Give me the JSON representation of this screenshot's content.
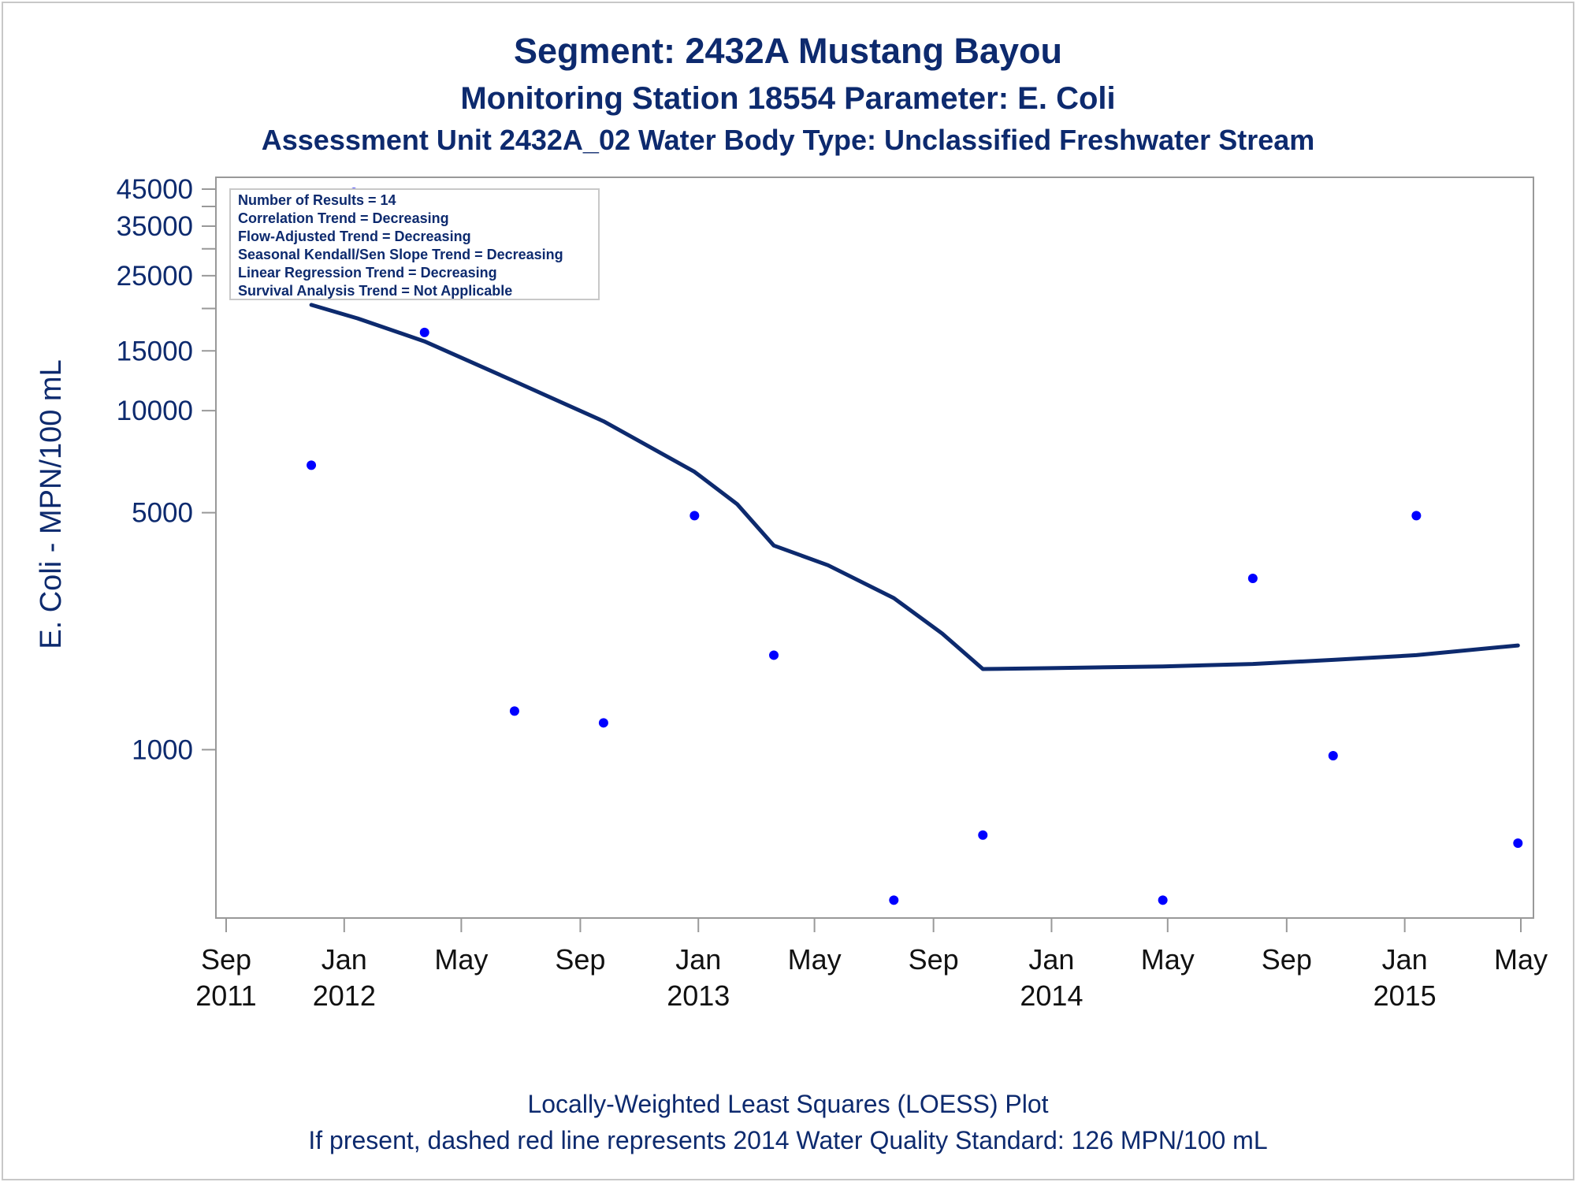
{
  "chart_data": {
    "type": "scatter",
    "title": "Segment: 2432A  Mustang Bayou",
    "subtitle": "Monitoring Station 18554 Parameter: E. Coli",
    "subtitle2": "Assessment Unit 2432A_02   Water Body Type: Unclassified Freshwater Stream",
    "ylabel": "E. Coli - MPN/100 mL",
    "yscale": "log",
    "ylim": [
      340,
      45000
    ],
    "xlim": [
      "2011-09-01",
      "2015-05-01"
    ],
    "grid": false,
    "y_ticks": [
      {
        "value": 45000,
        "label": "45000"
      },
      {
        "value": 35000,
        "label": "35000"
      },
      {
        "value": 25000,
        "label": "25000"
      },
      {
        "value": 15000,
        "label": "15000"
      },
      {
        "value": 10000,
        "label": "10000"
      },
      {
        "value": 5000,
        "label": "5000"
      },
      {
        "value": 1000,
        "label": "1000"
      }
    ],
    "y_minor_ticks": [
      40000,
      30000,
      20000
    ],
    "x_ticks": [
      {
        "date": "2011-09-01",
        "label1": "Sep",
        "label2": "2011"
      },
      {
        "date": "2012-01-01",
        "label1": "Jan",
        "label2": "2012"
      },
      {
        "date": "2012-05-01",
        "label1": "May",
        "label2": ""
      },
      {
        "date": "2012-09-01",
        "label1": "Sep",
        "label2": ""
      },
      {
        "date": "2013-01-01",
        "label1": "Jan",
        "label2": "2013"
      },
      {
        "date": "2013-05-01",
        "label1": "May",
        "label2": ""
      },
      {
        "date": "2013-09-01",
        "label1": "Sep",
        "label2": ""
      },
      {
        "date": "2014-01-01",
        "label1": "Jan",
        "label2": "2014"
      },
      {
        "date": "2014-05-01",
        "label1": "May",
        "label2": ""
      },
      {
        "date": "2014-09-01",
        "label1": "Sep",
        "label2": ""
      },
      {
        "date": "2015-01-01",
        "label1": "Jan",
        "label2": "2015"
      },
      {
        "date": "2015-05-01",
        "label1": "May",
        "label2": ""
      }
    ],
    "points": [
      {
        "x": "2011-11-28",
        "y": 6900
      },
      {
        "x": "2012-01-11",
        "y": 44000
      },
      {
        "x": "2012-03-24",
        "y": 17000
      },
      {
        "x": "2012-06-25",
        "y": 1300
      },
      {
        "x": "2012-09-25",
        "y": 1200
      },
      {
        "x": "2012-12-28",
        "y": 4900
      },
      {
        "x": "2013-03-20",
        "y": 1900
      },
      {
        "x": "2013-07-22",
        "y": 360
      },
      {
        "x": "2013-10-22",
        "y": 560
      },
      {
        "x": "2014-04-26",
        "y": 360
      },
      {
        "x": "2014-07-28",
        "y": 3200
      },
      {
        "x": "2014-10-19",
        "y": 960
      },
      {
        "x": "2015-01-13",
        "y": 4900
      },
      {
        "x": "2015-04-28",
        "y": 530
      }
    ],
    "loess": [
      {
        "x": "2011-11-28",
        "y": 20500
      },
      {
        "x": "2012-01-15",
        "y": 18700
      },
      {
        "x": "2012-03-24",
        "y": 16000
      },
      {
        "x": "2012-06-25",
        "y": 12200
      },
      {
        "x": "2012-09-25",
        "y": 9300
      },
      {
        "x": "2012-12-28",
        "y": 6600
      },
      {
        "x": "2013-02-10",
        "y": 5300
      },
      {
        "x": "2013-03-20",
        "y": 4000
      },
      {
        "x": "2013-05-15",
        "y": 3500
      },
      {
        "x": "2013-07-22",
        "y": 2800
      },
      {
        "x": "2013-09-10",
        "y": 2200
      },
      {
        "x": "2013-10-22",
        "y": 1730
      },
      {
        "x": "2014-01-01",
        "y": 1740
      },
      {
        "x": "2014-04-26",
        "y": 1760
      },
      {
        "x": "2014-07-28",
        "y": 1790
      },
      {
        "x": "2014-10-19",
        "y": 1840
      },
      {
        "x": "2015-01-13",
        "y": 1900
      },
      {
        "x": "2015-04-28",
        "y": 2030
      }
    ],
    "point_color": "#0000ff",
    "line_color": "#0d2a6e",
    "inset": {
      "placement": "top-left",
      "lines": [
        "Number of Results = 14",
        "Correlation Trend = Decreasing",
        "Flow-Adjusted Trend = Decreasing",
        "Seasonal Kendall/Sen Slope Trend = Decreasing",
        "Linear Regression Trend = Decreasing",
        "Survival Analysis Trend = Not Applicable"
      ]
    },
    "footnotes": [
      "Locally-Weighted Least Squares (LOESS) Plot",
      "If present, dashed red line represents 2014 Water Quality Standard: 126 MPN/100 mL"
    ]
  }
}
